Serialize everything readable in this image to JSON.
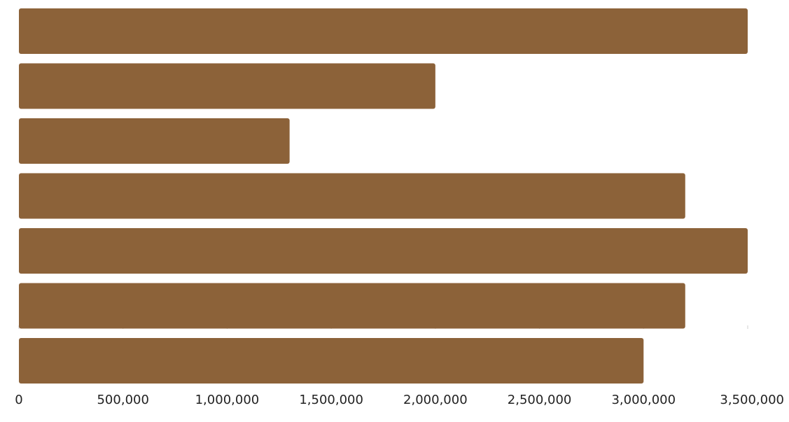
{
  "chart_data": {
    "type": "bar",
    "orientation": "horizontal",
    "values": [
      3500000,
      2000000,
      1300000,
      3200000,
      3500000,
      3200000,
      3000000
    ],
    "xlim": [
      0,
      3500000
    ],
    "x_ticks": [
      0,
      500000,
      1000000,
      1500000,
      2000000,
      2500000,
      3000000,
      3500000
    ],
    "x_tick_labels": [
      "0",
      "500,000",
      "1,000,000",
      "1,500,000",
      "2,000,000",
      "2,500,000",
      "3,000,000",
      "3,500,000"
    ],
    "title": "",
    "xlabel": "",
    "ylabel": "",
    "bar_color": "#8c6239",
    "grid": false,
    "legend": "none"
  }
}
